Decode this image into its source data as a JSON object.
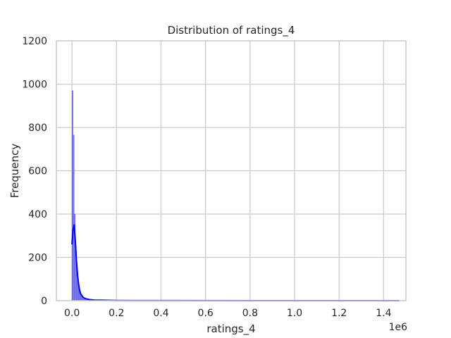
{
  "chart_data": {
    "type": "histogram",
    "title": "Distribution of ratings_4",
    "xlabel": "ratings_4",
    "ylabel": "Frequency",
    "x_offset_text": "1e6",
    "xlim": [
      -0.07,
      1.5
    ],
    "ylim": [
      0,
      1200
    ],
    "x_ticks": [
      0.0,
      0.2,
      0.4,
      0.6,
      0.8,
      1.0,
      1.2,
      1.4
    ],
    "x_tick_labels": [
      "0.0",
      "0.2",
      "0.4",
      "0.6",
      "0.8",
      "1.0",
      "1.2",
      "1.4"
    ],
    "y_ticks": [
      0,
      200,
      400,
      600,
      800,
      1000,
      1200
    ],
    "y_tick_labels": [
      "0",
      "200",
      "400",
      "600",
      "800",
      "1000",
      "1200"
    ],
    "grid": true,
    "bars": {
      "bin_width": 0.0049,
      "bin_starts": [
        0.0,
        0.0049,
        0.0098,
        0.0147,
        0.0196,
        0.0245,
        0.0294,
        0.0343,
        0.0392,
        0.0441,
        0.049,
        0.0539,
        0.0588,
        0.0637,
        0.0686,
        0.0735,
        0.0784,
        0.0833,
        0.0882,
        0.0931
      ],
      "counts": [
        970,
        765,
        400,
        250,
        160,
        100,
        65,
        45,
        30,
        20,
        15,
        12,
        9,
        7,
        6,
        5,
        4,
        3,
        3,
        2
      ]
    },
    "kde": {
      "x": [
        0.0,
        0.005,
        0.01,
        0.015,
        0.02,
        0.025,
        0.03,
        0.035,
        0.04,
        0.05,
        0.06,
        0.07,
        0.08,
        0.1,
        0.15,
        0.2,
        0.3,
        0.5,
        0.8,
        1.1,
        1.4,
        1.47
      ],
      "y": [
        260,
        330,
        350,
        280,
        190,
        120,
        75,
        45,
        30,
        16,
        10,
        7,
        5,
        3,
        2,
        1,
        0.5,
        0.3,
        0.2,
        0.1,
        0.1,
        0.1
      ]
    },
    "colors": {
      "bar_fill": "#6b6bf0",
      "bar_edge": "#5555dd",
      "kde_line": "#0000ff",
      "grid": "#cccccc",
      "spine": "#cccccc",
      "text": "#262626"
    }
  }
}
